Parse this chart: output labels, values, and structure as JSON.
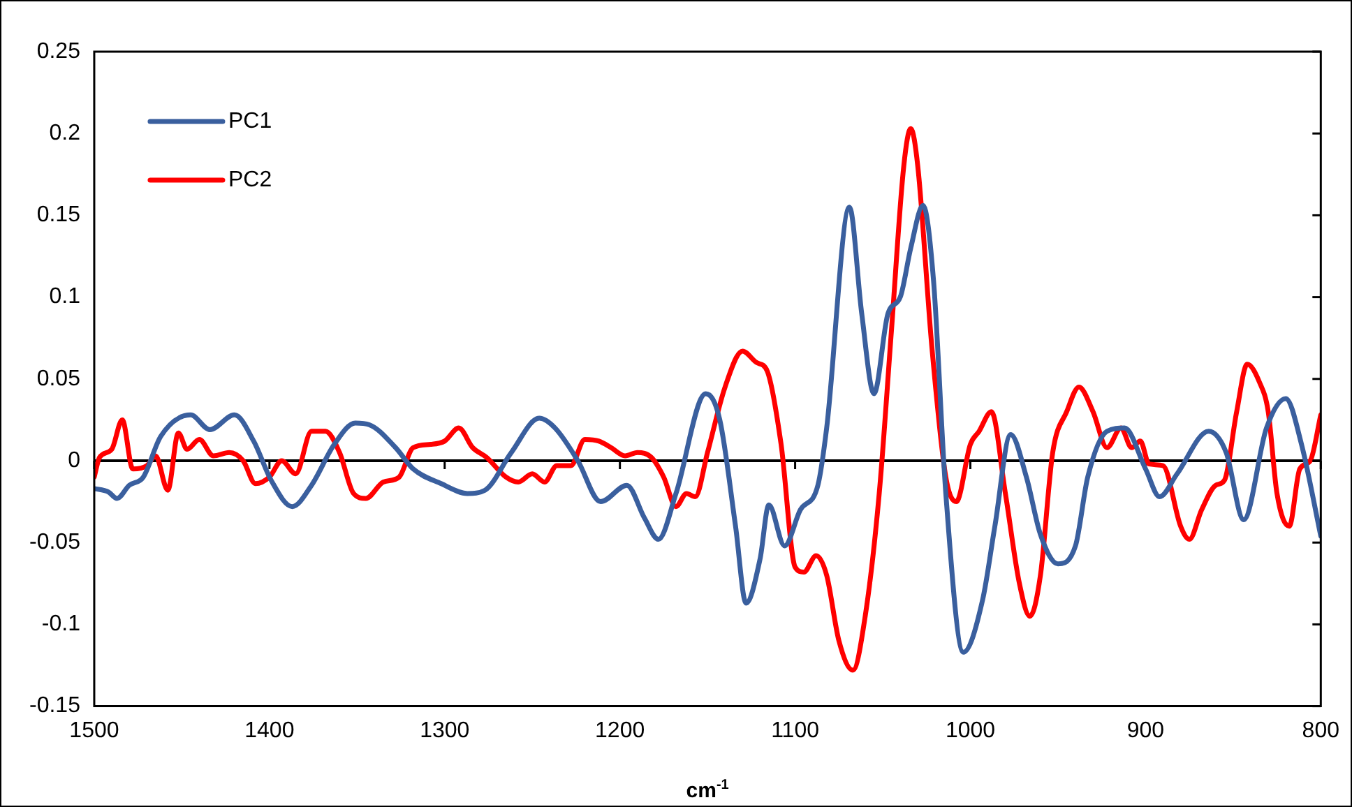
{
  "chart_data": {
    "type": "line",
    "xlabel": "cm$^{-1}$",
    "xlim": [
      1500,
      800
    ],
    "xticks": [
      1500,
      1400,
      1300,
      1200,
      1100,
      1000,
      900,
      800
    ],
    "ylim": [
      -0.15,
      0.25
    ],
    "yticks": [
      -0.15,
      -0.1,
      -0.05,
      0,
      0.05,
      0.1,
      0.15,
      0.2,
      0.25
    ],
    "grid": false,
    "legend": "top left",
    "marker": "none",
    "line_style": "solid",
    "ref_lines": [
      {
        "axis": "y",
        "value": 0,
        "color": "#000000"
      }
    ],
    "series": [
      {
        "name": "PC1",
        "color": "#3a5f9e",
        "x": [
          1500,
          1492,
          1487,
          1480,
          1472,
          1462,
          1445,
          1434,
          1420,
          1409,
          1399,
          1387,
          1376,
          1363,
          1351,
          1343,
          1328,
          1318,
          1302,
          1287,
          1277,
          1262,
          1246,
          1237,
          1224,
          1211,
          1196,
          1186,
          1178,
          1168,
          1151,
          1143,
          1134,
          1128,
          1120,
          1115,
          1106,
          1097,
          1087,
          1082,
          1069,
          1062,
          1055,
          1047,
          1040,
          1034,
          1027,
          1021,
          1014,
          1004,
          993,
          986,
          977,
          968,
          960,
          950,
          940,
          933,
          922,
          912,
          900,
          892,
          882,
          864,
          854,
          844,
          831,
          820,
          811,
          800
        ],
        "values": [
          -0.017,
          -0.019,
          -0.023,
          -0.015,
          -0.01,
          0.015,
          0.028,
          0.019,
          0.028,
          0.012,
          -0.012,
          -0.028,
          -0.015,
          0.01,
          0.023,
          0.022,
          0.008,
          -0.005,
          -0.014,
          -0.02,
          -0.018,
          0.005,
          0.026,
          0.02,
          0,
          -0.025,
          -0.015,
          -0.035,
          -0.048,
          -0.02,
          0.041,
          0.025,
          -0.04,
          -0.087,
          -0.06,
          -0.027,
          -0.052,
          -0.03,
          -0.015,
          0.02,
          0.155,
          0.09,
          0.041,
          0.09,
          0.1,
          0.13,
          0.156,
          0.11,
          -0.02,
          -0.117,
          -0.085,
          -0.04,
          0.016,
          -0.01,
          -0.045,
          -0.063,
          -0.052,
          -0.01,
          0.018,
          0.02,
          -0.005,
          -0.022,
          -0.008,
          0.018,
          0.005,
          -0.036,
          0.02,
          0.038,
          0.01,
          -0.046
        ]
      },
      {
        "name": "PC2",
        "color": "#ff0000",
        "x": [
          1500,
          1497,
          1490,
          1484,
          1478,
          1470,
          1465,
          1458,
          1452,
          1447,
          1440,
          1432,
          1423,
          1415,
          1408,
          1400,
          1393,
          1385,
          1376,
          1368,
          1360,
          1352,
          1345,
          1335,
          1326,
          1318,
          1308,
          1300,
          1292,
          1284,
          1276,
          1265,
          1258,
          1250,
          1243,
          1236,
          1228,
          1220,
          1212,
          1205,
          1197,
          1190,
          1182,
          1175,
          1168,
          1162,
          1157,
          1150,
          1140,
          1130,
          1122,
          1116,
          1108,
          1100,
          1095,
          1088,
          1082,
          1075,
          1067,
          1060,
          1052,
          1045,
          1038,
          1034,
          1030,
          1022,
          1014,
          1008,
          1000,
          995,
          988,
          980,
          972,
          966,
          960,
          953,
          945,
          938,
          930,
          922,
          914,
          908,
          903,
          898,
          890,
          880,
          875,
          868,
          860,
          855,
          848,
          842,
          835,
          830,
          825,
          818,
          812,
          806,
          800
        ],
        "values": [
          -0.01,
          0.002,
          0.007,
          0.025,
          -0.005,
          -0.003,
          0.003,
          -0.018,
          0.017,
          0.007,
          0.013,
          0.003,
          0.005,
          0,
          -0.014,
          -0.01,
          0,
          -0.008,
          0.018,
          0.018,
          0.005,
          -0.02,
          -0.023,
          -0.013,
          -0.01,
          0.008,
          0.01,
          0.012,
          0.02,
          0.008,
          0.002,
          -0.01,
          -0.013,
          -0.008,
          -0.013,
          -0.003,
          -0.003,
          0.013,
          0.012,
          0.008,
          0.003,
          0.005,
          0.002,
          -0.01,
          -0.028,
          -0.02,
          -0.022,
          0.005,
          0.045,
          0.067,
          0.06,
          0.055,
          0.01,
          -0.065,
          -0.068,
          -0.058,
          -0.07,
          -0.11,
          -0.128,
          -0.095,
          -0.02,
          0.08,
          0.18,
          0.203,
          0.18,
          0.07,
          -0.01,
          -0.025,
          0.01,
          0.018,
          0.03,
          -0.02,
          -0.075,
          -0.095,
          -0.07,
          0.005,
          0.03,
          0.045,
          0.03,
          0.008,
          0.02,
          0.008,
          0.012,
          -0.002,
          -0.003,
          -0.04,
          -0.048,
          -0.03,
          -0.015,
          -0.012,
          0.03,
          0.059,
          0.048,
          0.03,
          -0.02,
          -0.04,
          -0.005,
          0,
          0.028
        ]
      }
    ]
  }
}
